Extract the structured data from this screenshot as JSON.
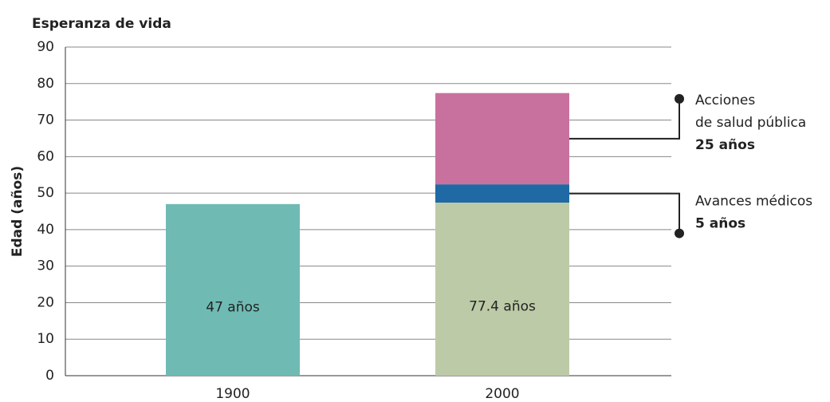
{
  "chart_data": {
    "type": "stacked_bar",
    "title": "Esperanza de vida",
    "y_label": "Edad (años)",
    "categories": [
      "1900",
      "2000"
    ],
    "series": [
      {
        "colors": [
          "#6fbbb4",
          "#bdcaa7"
        ],
        "values": [
          47,
          47.4
        ],
        "value_labels": [
          "47 años",
          null
        ]
      },
      {
        "color": "#1f6aa5",
        "values": [
          null,
          5
        ],
        "note": [
          "Avances médicos"
        ],
        "note_value": "5 años"
      },
      {
        "color": "#c8719e",
        "values": [
          null,
          25
        ],
        "note": [
          "Acciones",
          "de salud pública"
        ],
        "note_value": "25 años"
      }
    ],
    "total_labels": [
      null,
      "77.4 años"
    ],
    "ylim": [
      0,
      90
    ],
    "yticks": [
      0,
      10,
      20,
      30,
      40,
      50,
      60,
      70,
      80,
      90
    ],
    "grid": true
  }
}
